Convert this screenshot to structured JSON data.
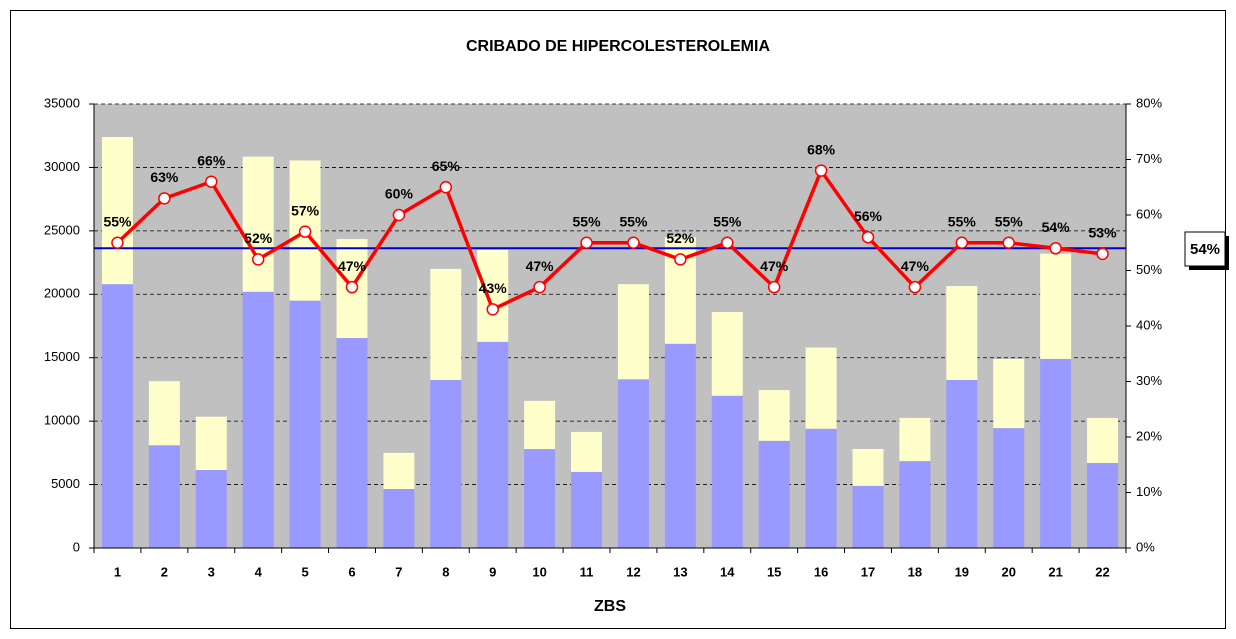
{
  "chart_data": {
    "type": "bar",
    "stacked": true,
    "title": "CRIBADO DE HIPERCOLESTEROLEMIA",
    "xlabel": "ZBS",
    "categories": [
      "1",
      "2",
      "3",
      "4",
      "5",
      "6",
      "7",
      "8",
      "9",
      "10",
      "11",
      "12",
      "13",
      "14",
      "15",
      "16",
      "17",
      "18",
      "19",
      "20",
      "21",
      "22"
    ],
    "series": [
      {
        "color": "#9999ff",
        "values": [
          20800,
          8100,
          6150,
          20200,
          19500,
          16550,
          4650,
          13250,
          16250,
          7800,
          6000,
          13300,
          16100,
          12000,
          8450,
          9400,
          4900,
          6850,
          13250,
          9450,
          14900,
          6700
        ]
      },
      {
        "color": "#ffffcc",
        "values": [
          11600,
          5050,
          4200,
          10650,
          11050,
          7800,
          2850,
          8750,
          7250,
          3800,
          3150,
          7500,
          8400,
          6600,
          4000,
          6400,
          2900,
          3400,
          7400,
          5450,
          8300,
          3550
        ]
      },
      {
        "type": "line",
        "axis": "y2",
        "color": "#ff0000",
        "values": [
          55,
          63,
          66,
          52,
          57,
          47,
          60,
          65,
          43,
          47,
          55,
          55,
          52,
          55,
          47,
          68,
          56,
          47,
          55,
          55,
          54,
          53
        ],
        "value_labels": [
          "55%",
          "63%",
          "66%",
          "52%",
          "57%",
          "47%",
          "60%",
          "65%",
          "43%",
          "47%",
          "55%",
          "55%",
          "52%",
          "55%",
          "47%",
          "68%",
          "56%",
          "47%",
          "55%",
          "55%",
          "54%",
          "53%"
        ]
      }
    ],
    "reference_line": {
      "axis": "y2",
      "value": 54,
      "label": "54%",
      "color": "#0000cc"
    },
    "ylim": [
      0,
      35000
    ],
    "yticks": [
      0,
      5000,
      10000,
      15000,
      20000,
      25000,
      30000,
      35000
    ],
    "y2lim": [
      0,
      80
    ],
    "y2ticks": [
      {
        "value": 0,
        "label": "0%"
      },
      {
        "value": 10,
        "label": "10%"
      },
      {
        "value": 20,
        "label": "20%"
      },
      {
        "value": 30,
        "label": "30%"
      },
      {
        "value": 40,
        "label": "40%"
      },
      {
        "value": 50,
        "label": "50%"
      },
      {
        "value": 60,
        "label": "60%"
      },
      {
        "value": 70,
        "label": "70%"
      },
      {
        "value": 80,
        "label": "80%"
      }
    ],
    "grid": true,
    "plot_background": "#c0c0c0"
  }
}
